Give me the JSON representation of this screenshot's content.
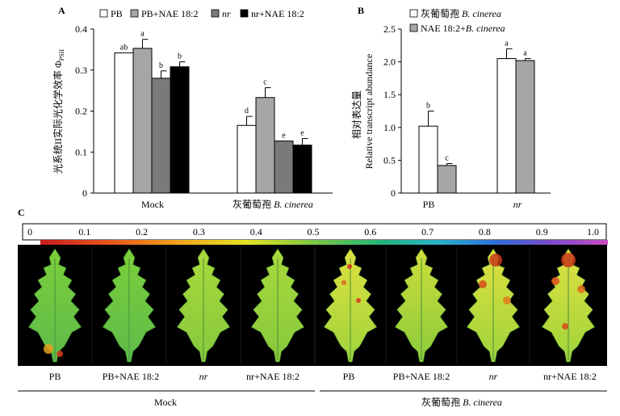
{
  "panels": {
    "a": {
      "panel_label": "A",
      "ylabel": "光系统II实际光化学效率 Φ",
      "ylabel_sub": "PSII",
      "yticks": [
        "0",
        "0.1",
        "0.2",
        "0.3",
        "0.4"
      ],
      "legend": [
        {
          "label": "PB",
          "color": "#ffffff"
        },
        {
          "label": "PB+NAE 18:2",
          "color": "#a6a6a6"
        },
        {
          "label": "nr",
          "color": "#7a7a7a",
          "italic": true
        },
        {
          "label": "nr+NAE 18:2",
          "color": "#000000",
          "italic_prefix": "nr"
        }
      ],
      "group_mock": "Mock",
      "group_botrytis_cn": "灰葡萄孢",
      "group_botrytis_latin": "B. cinerea"
    },
    "b": {
      "panel_label": "B",
      "ylabel_cn": "相对表达量",
      "ylabel_en": "Relative transcript abundance",
      "yticks": [
        "0",
        "0.5",
        "1.0",
        "1.5",
        "2.0",
        "2.5"
      ],
      "legend": [
        {
          "label_cn": "灰葡萄孢",
          "label_latin": "B. cinerea",
          "color": "#ffffff"
        },
        {
          "label_prefix": "NAE 18:2+",
          "label_latin": "B. cinerea",
          "color": "#a6a6a6"
        }
      ],
      "categories": [
        "PB",
        "nr"
      ]
    },
    "c": {
      "panel_label": "C",
      "scale_ticks": [
        "0",
        "0.1",
        "0.2",
        "0.3",
        "0.4",
        "0.5",
        "0.6",
        "0.7",
        "0.8",
        "0.9",
        "1.0"
      ],
      "leaf_labels": [
        "PB",
        "PB+NAE 18:2",
        "nr",
        "nr+NAE 18:2",
        "PB",
        "PB+NAE 18:2",
        "nr",
        "nr+NAE 18:2"
      ],
      "group_mock": "Mock",
      "group_botrytis_cn": "灰葡萄孢",
      "group_botrytis_latin": "B. cinerea"
    }
  },
  "chart_data": [
    {
      "type": "bar",
      "panel": "A",
      "ylabel": "光系统II实际光化学效率 ΦPSII",
      "ylim": [
        0,
        0.4
      ],
      "categories": [
        "Mock",
        "灰葡萄孢 B. cinerea"
      ],
      "series": [
        {
          "name": "PB",
          "color": "#ffffff",
          "values": [
            0.342,
            0.165
          ],
          "errors": [
            0.0,
            0.022
          ],
          "letters": [
            "ab",
            "d"
          ]
        },
        {
          "name": "PB+NAE 18:2",
          "color": "#a6a6a6",
          "values": [
            0.353,
            0.233
          ],
          "errors": [
            0.022,
            0.024
          ],
          "letters": [
            "a",
            "c"
          ]
        },
        {
          "name": "nr",
          "color": "#7a7a7a",
          "values": [
            0.28,
            0.127
          ],
          "errors": [
            0.018,
            0.0
          ],
          "letters": [
            "b",
            "e"
          ]
        },
        {
          "name": "nr+NAE 18:2",
          "color": "#000000",
          "values": [
            0.308,
            0.117
          ],
          "errors": [
            0.012,
            0.016
          ],
          "letters": [
            "b",
            "e"
          ]
        }
      ]
    },
    {
      "type": "bar",
      "panel": "B",
      "ylabel": "相对表达量 Relative transcript abundance",
      "ylim": [
        0,
        2.5
      ],
      "categories": [
        "PB",
        "nr"
      ],
      "series": [
        {
          "name": "灰葡萄孢 B. cinerea",
          "color": "#ffffff",
          "values": [
            1.02,
            2.05
          ],
          "errors": [
            0.23,
            0.15
          ],
          "letters": [
            "b",
            "a"
          ]
        },
        {
          "name": "NAE 18:2+B. cinerea",
          "color": "#a6a6a6",
          "values": [
            0.42,
            2.02
          ],
          "errors": [
            0.03,
            0.03
          ],
          "letters": [
            "c",
            "a"
          ]
        }
      ]
    }
  ]
}
